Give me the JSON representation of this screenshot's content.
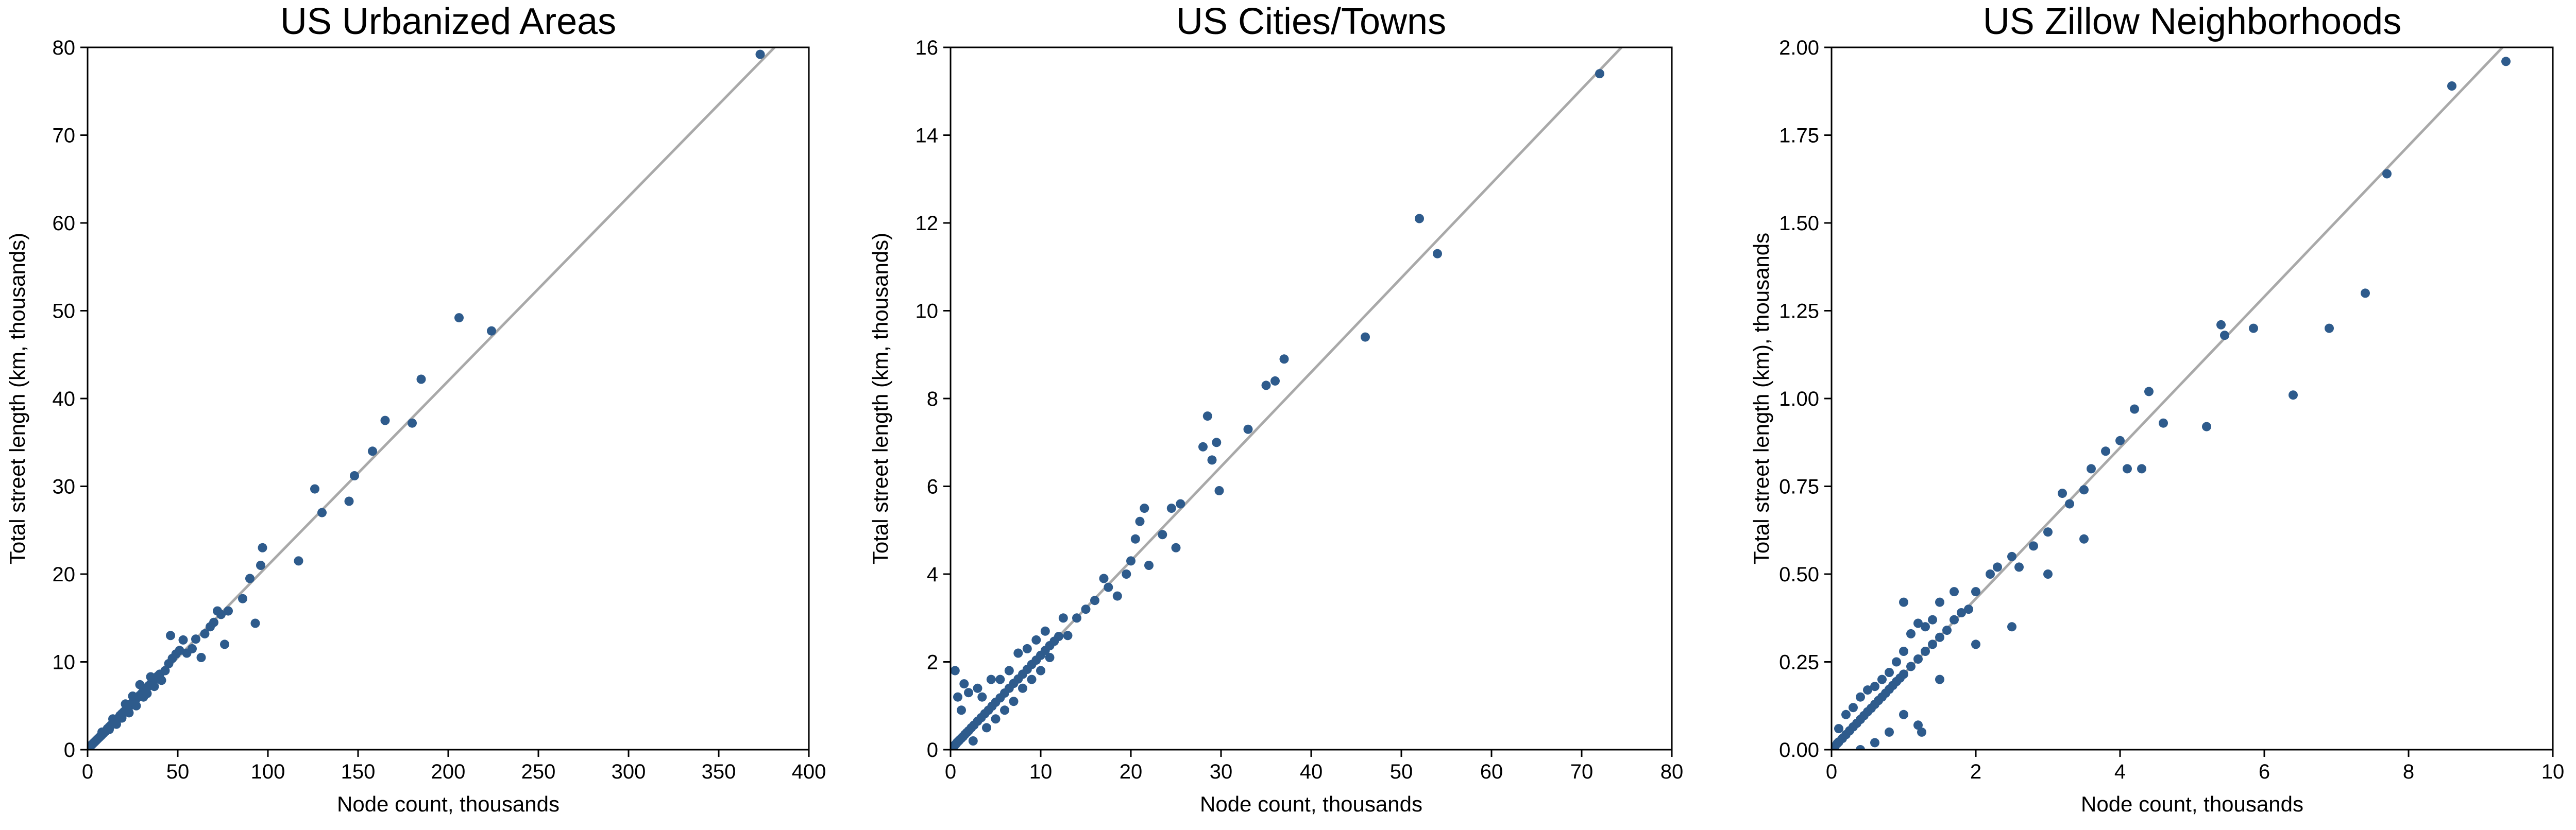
{
  "figure": {
    "background": "#ffffff",
    "marker_color": "#2e5b8c",
    "fit_line_color": "#a9a9a9"
  },
  "chart_data": [
    {
      "type": "scatter",
      "title": "US Urbanized Areas",
      "xlabel": "Node count, thousands",
      "ylabel": "Total street length (km, thousands)",
      "xlim": [
        0,
        400
      ],
      "ylim": [
        0,
        80
      ],
      "xticks": [
        "0",
        "50",
        "100",
        "150",
        "200",
        "250",
        "300",
        "350",
        "400"
      ],
      "yticks": [
        "0",
        "10",
        "20",
        "30",
        "40",
        "50",
        "60",
        "70",
        "80"
      ],
      "grid": false,
      "legend": "none",
      "fit_line": {
        "slope": 0.21,
        "intercept": 0
      },
      "points": [
        [
          0.5,
          0.2
        ],
        [
          1,
          0.3
        ],
        [
          1.5,
          0.4
        ],
        [
          2,
          0.5
        ],
        [
          2.5,
          0.6
        ],
        [
          3,
          0.7
        ],
        [
          3.5,
          0.8
        ],
        [
          4,
          0.9
        ],
        [
          4.5,
          1.0
        ],
        [
          5,
          1.1
        ],
        [
          5.5,
          1.2
        ],
        [
          6,
          1.3
        ],
        [
          6.5,
          1.4
        ],
        [
          7,
          1.5
        ],
        [
          7.5,
          1.6
        ],
        [
          8,
          1.7
        ],
        [
          9,
          1.9
        ],
        [
          10,
          2.1
        ],
        [
          11,
          2.4
        ],
        [
          12,
          2.6
        ],
        [
          13,
          2.8
        ],
        [
          14,
          3.0
        ],
        [
          15,
          3.2
        ],
        [
          16,
          3.4
        ],
        [
          17,
          3.6
        ],
        [
          18,
          3.9
        ],
        [
          19,
          4.1
        ],
        [
          20,
          4.3
        ],
        [
          21,
          4.5
        ],
        [
          22,
          4.7
        ],
        [
          23,
          4.9
        ],
        [
          24,
          5.2
        ],
        [
          25,
          5.4
        ],
        [
          26,
          5.6
        ],
        [
          27,
          5.8
        ],
        [
          28,
          6.0
        ],
        [
          29,
          6.2
        ],
        [
          30,
          6.4
        ],
        [
          31,
          6.7
        ],
        [
          32,
          6.9
        ],
        [
          33,
          7.1
        ],
        [
          34,
          7.3
        ],
        [
          35,
          7.5
        ],
        [
          36,
          7.7
        ],
        [
          37,
          8.0
        ],
        [
          38,
          8.2
        ],
        [
          39,
          8.4
        ],
        [
          40,
          8.6
        ],
        [
          8,
          2.0
        ],
        [
          12,
          2.3
        ],
        [
          14,
          3.5
        ],
        [
          16,
          2.9
        ],
        [
          19,
          3.6
        ],
        [
          21,
          5.2
        ],
        [
          23,
          4.2
        ],
        [
          25,
          6.1
        ],
        [
          27,
          5.0
        ],
        [
          29,
          7.4
        ],
        [
          31,
          6.0
        ],
        [
          33,
          6.4
        ],
        [
          35,
          8.3
        ],
        [
          37,
          7.2
        ],
        [
          41,
          7.9
        ],
        [
          43,
          9.0
        ],
        [
          45,
          9.8
        ],
        [
          47,
          10.4
        ],
        [
          49,
          10.9
        ],
        [
          51,
          11.3
        ],
        [
          46,
          13.0
        ],
        [
          53,
          12.5
        ],
        [
          55,
          11.0
        ],
        [
          58,
          11.5
        ],
        [
          60,
          12.6
        ],
        [
          63,
          10.5
        ],
        [
          65,
          13.2
        ],
        [
          68,
          14.0
        ],
        [
          70,
          14.5
        ],
        [
          72,
          15.8
        ],
        [
          74,
          15.4
        ],
        [
          76,
          12.0
        ],
        [
          78,
          15.8
        ],
        [
          86,
          17.2
        ],
        [
          90,
          19.5
        ],
        [
          93,
          14.4
        ],
        [
          96,
          21.0
        ],
        [
          97,
          23.0
        ],
        [
          117,
          21.5
        ],
        [
          126,
          29.7
        ],
        [
          130,
          27.0
        ],
        [
          145,
          28.3
        ],
        [
          148,
          31.2
        ],
        [
          158,
          34.0
        ],
        [
          165,
          37.5
        ],
        [
          180,
          37.2
        ],
        [
          185,
          42.2
        ],
        [
          206,
          49.2
        ],
        [
          224,
          47.7
        ],
        [
          373,
          79.2
        ]
      ]
    },
    {
      "type": "scatter",
      "title": "US Cities/Towns",
      "xlabel": "Node count, thousands",
      "ylabel": "Total street length (km, thousands)",
      "xlim": [
        0,
        80
      ],
      "ylim": [
        0,
        16
      ],
      "xticks": [
        "0",
        "10",
        "20",
        "30",
        "40",
        "50",
        "60",
        "70",
        "80"
      ],
      "yticks": [
        "0",
        "2",
        "4",
        "6",
        "8",
        "10",
        "12",
        "14",
        "16"
      ],
      "grid": false,
      "legend": "none",
      "fit_line": {
        "slope": 0.215,
        "intercept": 0
      },
      "points": [
        [
          0.1,
          0.03
        ],
        [
          0.2,
          0.05
        ],
        [
          0.3,
          0.07
        ],
        [
          0.4,
          0.09
        ],
        [
          0.5,
          0.11
        ],
        [
          0.6,
          0.13
        ],
        [
          0.7,
          0.16
        ],
        [
          0.8,
          0.18
        ],
        [
          0.9,
          0.2
        ],
        [
          1.0,
          0.22
        ],
        [
          1.2,
          0.26
        ],
        [
          1.4,
          0.3
        ],
        [
          1.6,
          0.35
        ],
        [
          1.8,
          0.39
        ],
        [
          2.0,
          0.43
        ],
        [
          2.3,
          0.5
        ],
        [
          2.6,
          0.56
        ],
        [
          3.0,
          0.65
        ],
        [
          3.4,
          0.73
        ],
        [
          3.8,
          0.82
        ],
        [
          4.2,
          0.9
        ],
        [
          4.6,
          0.99
        ],
        [
          5.0,
          1.08
        ],
        [
          5.5,
          1.18
        ],
        [
          6.0,
          1.29
        ],
        [
          6.5,
          1.4
        ],
        [
          7.0,
          1.51
        ],
        [
          7.5,
          1.61
        ],
        [
          8.0,
          1.72
        ],
        [
          8.5,
          1.83
        ],
        [
          9.0,
          1.94
        ],
        [
          9.5,
          2.04
        ],
        [
          10.0,
          2.15
        ],
        [
          10.5,
          2.26
        ],
        [
          11.0,
          2.37
        ],
        [
          11.5,
          2.47
        ],
        [
          12.0,
          2.58
        ],
        [
          0.5,
          1.8
        ],
        [
          0.8,
          1.2
        ],
        [
          1.2,
          0.9
        ],
        [
          1.5,
          1.5
        ],
        [
          2.0,
          1.3
        ],
        [
          2.5,
          0.2
        ],
        [
          3.0,
          1.4
        ],
        [
          3.5,
          1.2
        ],
        [
          4.0,
          0.5
        ],
        [
          4.5,
          1.6
        ],
        [
          5.0,
          0.7
        ],
        [
          5.5,
          1.6
        ],
        [
          6.0,
          0.9
        ],
        [
          6.5,
          1.8
        ],
        [
          7.0,
          1.1
        ],
        [
          7.5,
          2.2
        ],
        [
          8.0,
          1.4
        ],
        [
          8.5,
          2.3
        ],
        [
          9.0,
          1.6
        ],
        [
          9.5,
          2.5
        ],
        [
          10.0,
          1.8
        ],
        [
          10.5,
          2.7
        ],
        [
          11.0,
          2.1
        ],
        [
          12.5,
          3.0
        ],
        [
          13.0,
          2.6
        ],
        [
          14.0,
          3.0
        ],
        [
          15.0,
          3.2
        ],
        [
          16.0,
          3.4
        ],
        [
          17.0,
          3.9
        ],
        [
          17.5,
          3.7
        ],
        [
          18.5,
          3.5
        ],
        [
          19.5,
          4.0
        ],
        [
          20.0,
          4.3
        ],
        [
          20.5,
          4.8
        ],
        [
          21.0,
          5.2
        ],
        [
          21.5,
          5.5
        ],
        [
          22.0,
          4.2
        ],
        [
          23.5,
          4.9
        ],
        [
          24.5,
          5.5
        ],
        [
          25.0,
          4.6
        ],
        [
          25.5,
          5.6
        ],
        [
          28.0,
          6.9
        ],
        [
          28.5,
          7.6
        ],
        [
          29.0,
          6.6
        ],
        [
          29.5,
          7.0
        ],
        [
          29.8,
          5.9
        ],
        [
          33.0,
          7.3
        ],
        [
          35.0,
          8.3
        ],
        [
          36.0,
          8.4
        ],
        [
          37.0,
          8.9
        ],
        [
          46.0,
          9.4
        ],
        [
          52.0,
          12.1
        ],
        [
          54.0,
          11.3
        ],
        [
          72.0,
          15.4
        ]
      ]
    },
    {
      "type": "scatter",
      "title": "US Zillow Neighborhoods",
      "xlabel": "Node count, thousands",
      "ylabel": "Total street length (km), thousands",
      "xlim": [
        0,
        10
      ],
      "ylim": [
        0,
        2.0
      ],
      "xticks": [
        "0",
        "2",
        "4",
        "6",
        "8",
        "10"
      ],
      "yticks": [
        "0.00",
        "0.25",
        "0.50",
        "0.75",
        "1.00",
        "1.25",
        "1.50",
        "1.75",
        "2.00"
      ],
      "grid": false,
      "legend": "none",
      "fit_line": {
        "slope": 0.215,
        "intercept": 0
      },
      "points": [
        [
          0.02,
          0.005
        ],
        [
          0.05,
          0.01
        ],
        [
          0.08,
          0.018
        ],
        [
          0.1,
          0.022
        ],
        [
          0.15,
          0.032
        ],
        [
          0.2,
          0.043
        ],
        [
          0.25,
          0.054
        ],
        [
          0.3,
          0.065
        ],
        [
          0.35,
          0.075
        ],
        [
          0.4,
          0.086
        ],
        [
          0.45,
          0.097
        ],
        [
          0.5,
          0.108
        ],
        [
          0.55,
          0.118
        ],
        [
          0.6,
          0.129
        ],
        [
          0.65,
          0.14
        ],
        [
          0.7,
          0.15
        ],
        [
          0.75,
          0.161
        ],
        [
          0.8,
          0.172
        ],
        [
          0.85,
          0.183
        ],
        [
          0.9,
          0.194
        ],
        [
          0.95,
          0.204
        ],
        [
          1.0,
          0.215
        ],
        [
          1.1,
          0.237
        ],
        [
          1.2,
          0.258
        ],
        [
          1.3,
          0.28
        ],
        [
          1.4,
          0.3
        ],
        [
          1.5,
          0.32
        ],
        [
          1.6,
          0.34
        ],
        [
          1.7,
          0.37
        ],
        [
          1.8,
          0.39
        ],
        [
          0.1,
          0.06
        ],
        [
          0.2,
          0.1
        ],
        [
          0.3,
          0.12
        ],
        [
          0.4,
          0.15
        ],
        [
          0.5,
          0.17
        ],
        [
          0.6,
          0.18
        ],
        [
          0.7,
          0.2
        ],
        [
          0.8,
          0.22
        ],
        [
          0.9,
          0.25
        ],
        [
          1.0,
          0.42
        ],
        [
          1.0,
          0.28
        ],
        [
          1.1,
          0.33
        ],
        [
          1.2,
          0.36
        ],
        [
          1.3,
          0.35
        ],
        [
          1.4,
          0.37
        ],
        [
          1.5,
          0.42
        ],
        [
          1.7,
          0.45
        ],
        [
          1.9,
          0.4
        ],
        [
          2.0,
          0.45
        ],
        [
          2.2,
          0.5
        ],
        [
          2.3,
          0.52
        ],
        [
          2.5,
          0.55
        ],
        [
          2.6,
          0.52
        ],
        [
          2.8,
          0.58
        ],
        [
          3.0,
          0.62
        ],
        [
          3.2,
          0.73
        ],
        [
          3.3,
          0.7
        ],
        [
          3.5,
          0.74
        ],
        [
          3.6,
          0.8
        ],
        [
          3.8,
          0.85
        ],
        [
          4.0,
          0.88
        ],
        [
          4.2,
          0.97
        ],
        [
          4.4,
          1.02
        ],
        [
          4.6,
          0.93
        ],
        [
          0.4,
          0.0
        ],
        [
          0.6,
          0.02
        ],
        [
          0.8,
          0.05
        ],
        [
          1.0,
          0.1
        ],
        [
          1.2,
          0.07
        ],
        [
          1.25,
          0.05
        ],
        [
          1.5,
          0.2
        ],
        [
          2.0,
          0.3
        ],
        [
          2.5,
          0.35
        ],
        [
          3.0,
          0.5
        ],
        [
          3.5,
          0.6
        ],
        [
          4.1,
          0.8
        ],
        [
          4.3,
          0.8
        ],
        [
          5.2,
          0.92
        ],
        [
          5.4,
          1.21
        ],
        [
          5.45,
          1.18
        ],
        [
          5.85,
          1.2
        ],
        [
          6.4,
          1.01
        ],
        [
          6.9,
          1.2
        ],
        [
          7.4,
          1.3
        ],
        [
          7.7,
          1.64
        ],
        [
          8.6,
          1.89
        ],
        [
          9.35,
          1.96
        ]
      ]
    }
  ]
}
